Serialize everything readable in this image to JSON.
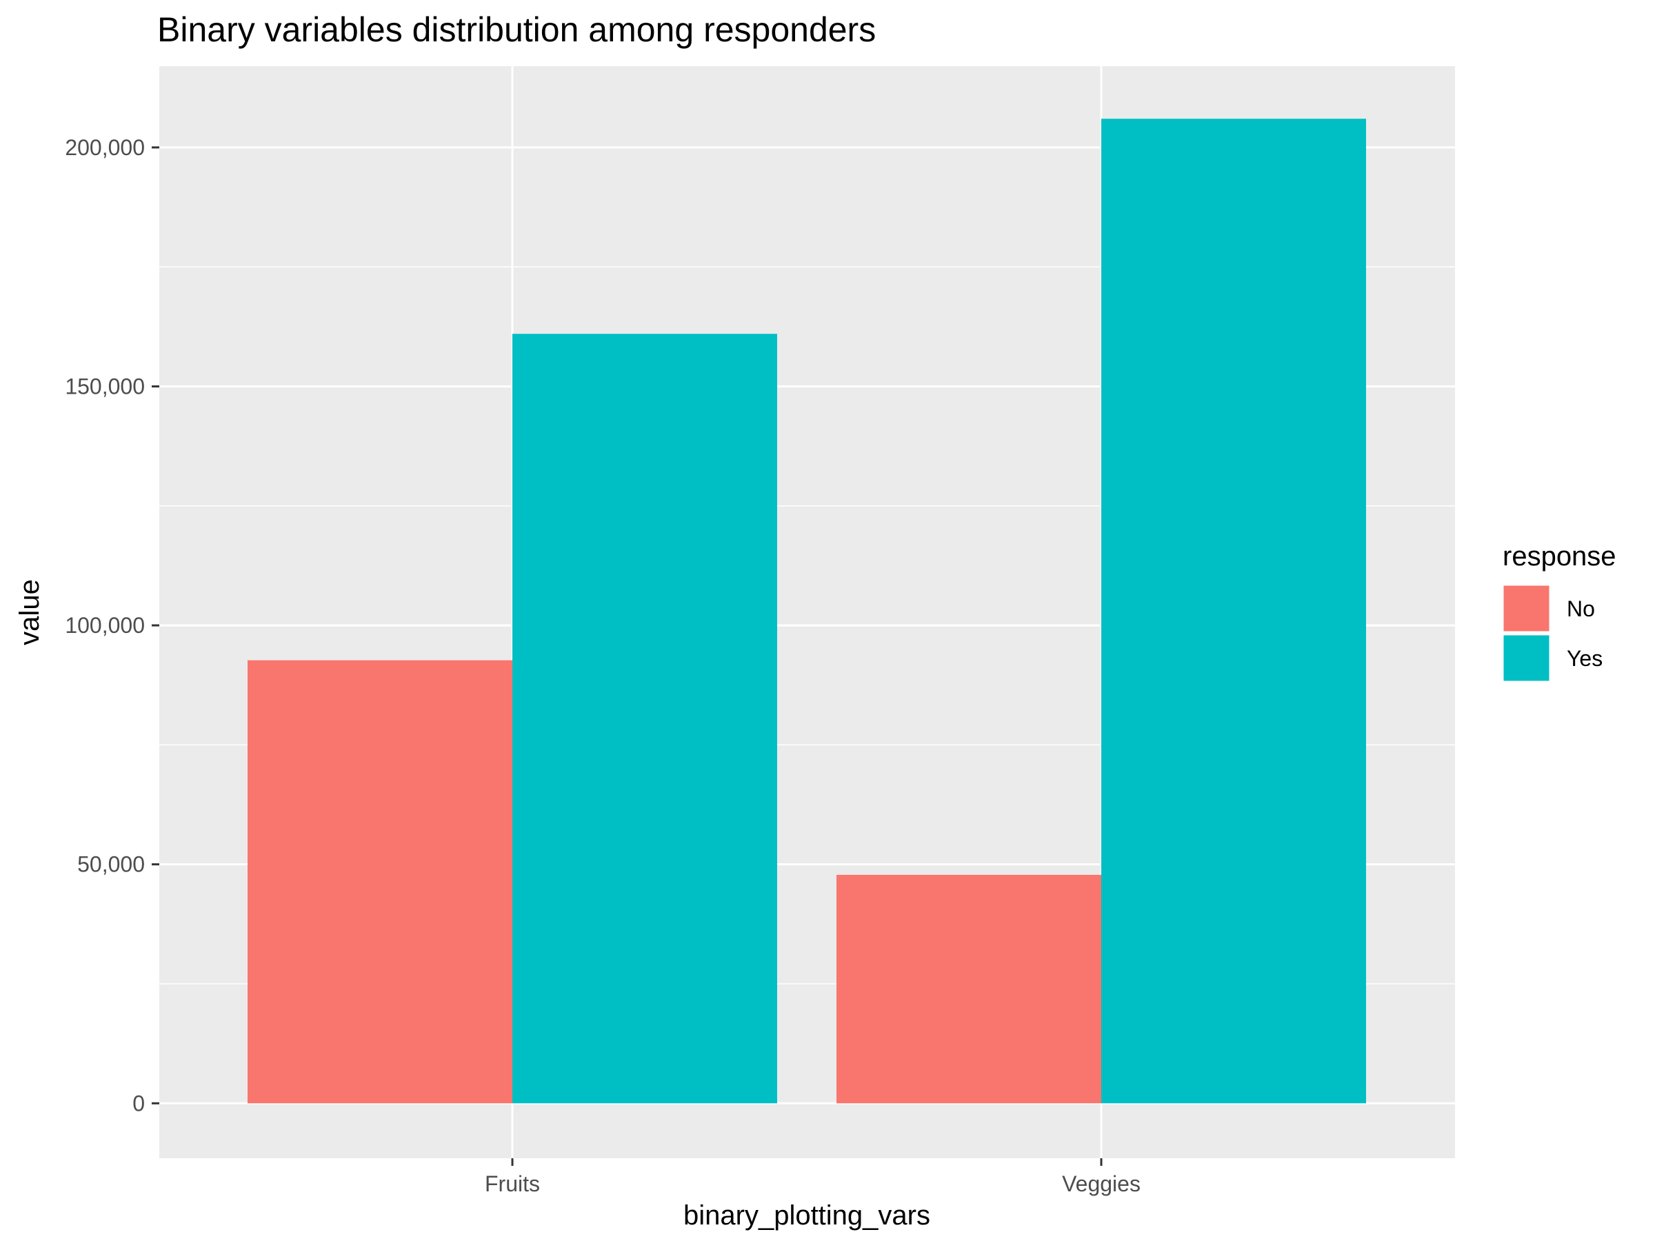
{
  "chart_data": {
    "type": "bar",
    "title": "Binary variables distribution among responders",
    "xlabel": "binary_plotting_vars",
    "ylabel": "value",
    "categories": [
      "Fruits",
      "Veggies"
    ],
    "series": [
      {
        "name": "No",
        "values": [
          92700,
          47800
        ]
      },
      {
        "name": "Yes",
        "values": [
          161000,
          206000
        ]
      }
    ],
    "ylim": [
      -11500,
      217000
    ],
    "yticks": [
      0,
      50000,
      100000,
      150000,
      200000
    ],
    "ytick_labels": [
      "0",
      "50,000",
      "100,000",
      "150,000",
      "200,000"
    ],
    "grid": true,
    "legend": {
      "title": "response",
      "placement": "right",
      "entries": [
        "No",
        "Yes"
      ]
    },
    "colors": {
      "No": "#F8766D",
      "Yes": "#00BFC4",
      "panel": "#EBEBEB",
      "grid": "#FFFFFF",
      "tick": "#333333",
      "tick_label": "#4D4D4D"
    }
  }
}
